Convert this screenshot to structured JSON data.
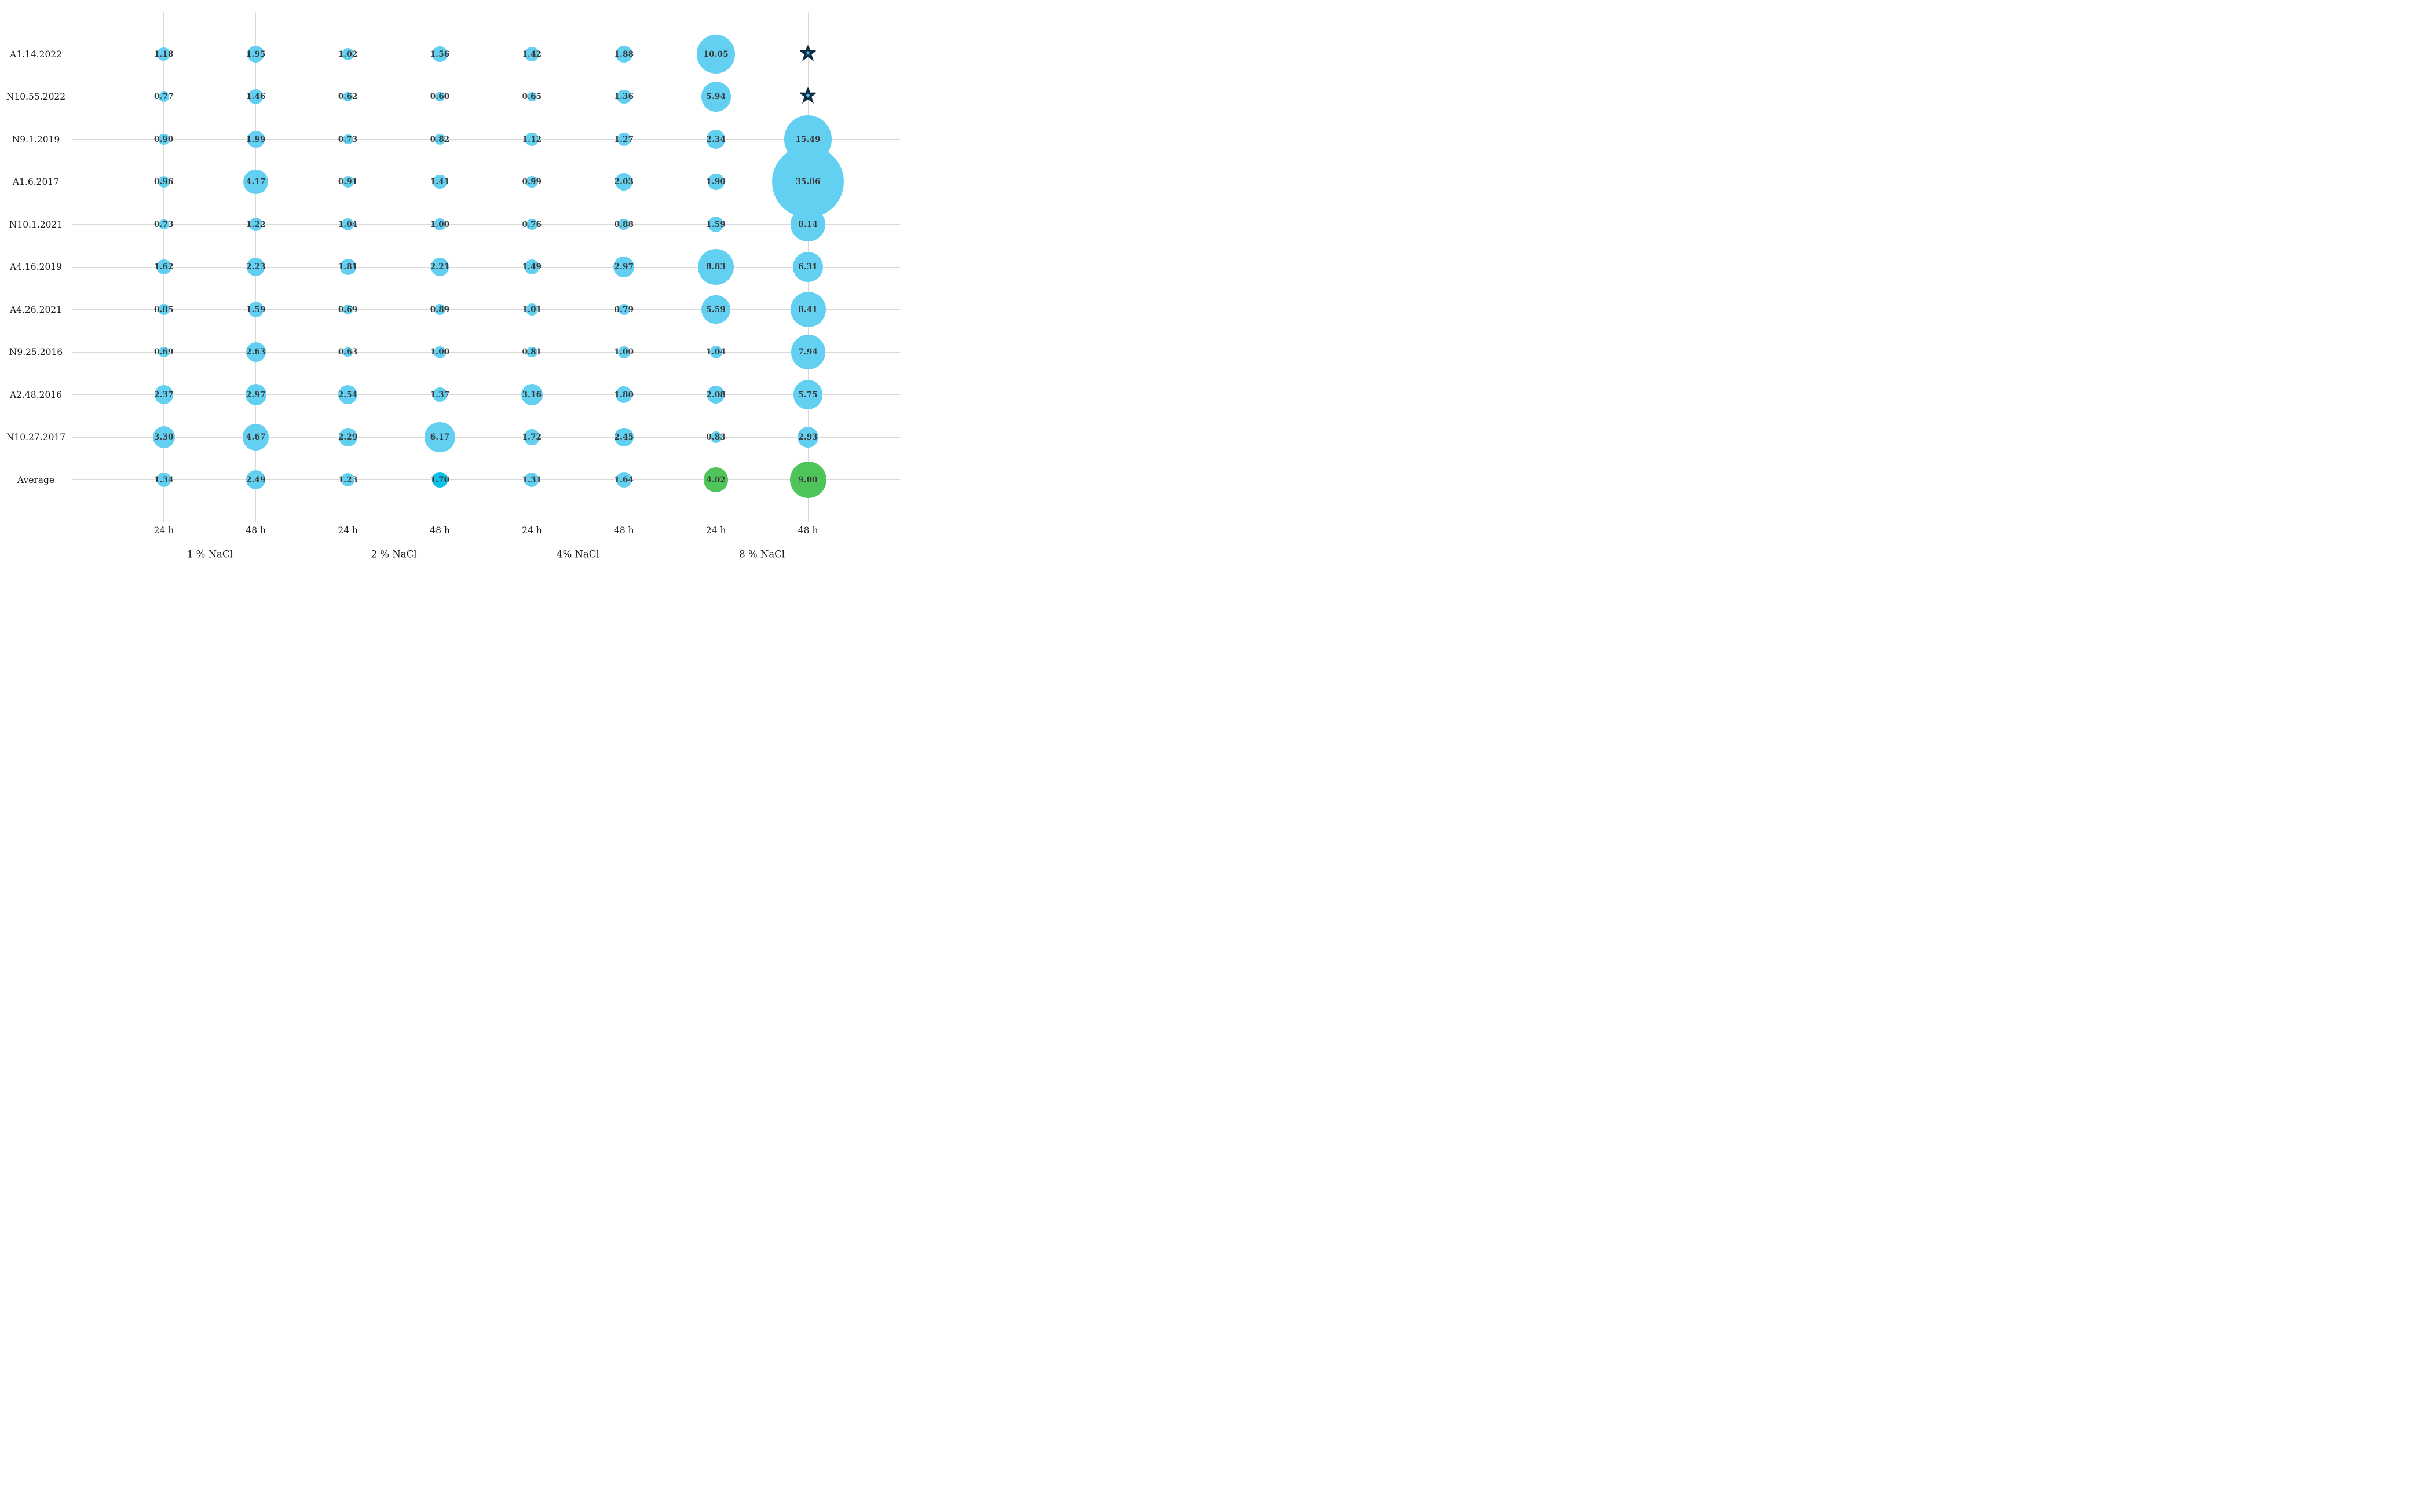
{
  "colors": {
    "bubble": "#63d0f2",
    "bubble_accent_cyan": "#0bc0e9",
    "bubble_green": "#4ec45b",
    "grid": "#d9d9d9",
    "plot_border": "#c8c8c8",
    "value_text": "#3a3a3a",
    "label_text": "#1a1a1a",
    "star_fill": "#59cdf0",
    "star_outline": "#0e2c44",
    "background": "#ffffff"
  },
  "chart_data": {
    "type": "scatter",
    "variant": "bubble",
    "title": "",
    "xlabel": "",
    "ylabel": "",
    "grid": true,
    "legend": false,
    "value_label_format": "two-decimals",
    "bubble_size_rule": "diameter proportional to sqrt(value)",
    "star_marker_meaning": "star symbol shown instead of bubble (no numeric value displayed)",
    "col_time_labels": [
      "24 h",
      "48 h",
      "24 h",
      "48 h",
      "24 h",
      "48 h",
      "24 h",
      "48 h"
    ],
    "group_labels": [
      "1 % NaCl",
      "2 % NaCl",
      "4% NaCl",
      "8 % NaCl"
    ],
    "rows": [
      {
        "label": "A1.14.2022",
        "values": [
          "1.18",
          "1.95",
          "1.02",
          "1.56",
          "1.42",
          "1.88",
          "10.05",
          "star"
        ]
      },
      {
        "label": "N10.55.2022",
        "values": [
          "0.77",
          "1.46",
          "0.62",
          "0.60",
          "0.65",
          "1.36",
          "5.94",
          "star"
        ]
      },
      {
        "label": "N9.1.2019",
        "values": [
          "0.90",
          "1.99",
          "0.73",
          "0.82",
          "1.12",
          "1.27",
          "2.34",
          "15.49"
        ]
      },
      {
        "label": "A1.6.2017",
        "values": [
          "0.96",
          "4.17",
          "0.91",
          "1.41",
          "0.99",
          "2.03",
          "1.90",
          "35.06"
        ]
      },
      {
        "label": "N10.1.2021",
        "values": [
          "0.73",
          "1.22",
          "1.04",
          "1.00",
          "0.76",
          "0.88",
          "1.59",
          "8.14"
        ]
      },
      {
        "label": "A4.16.2019",
        "values": [
          "1.62",
          "2.23",
          "1.81",
          "2.21",
          "1.49",
          "2.97",
          "8.83",
          "6.31"
        ]
      },
      {
        "label": "A4.26.2021",
        "values": [
          "0.85",
          "1.59",
          "0.69",
          "0.89",
          "1.01",
          "0.79",
          "5.59",
          "8.41"
        ]
      },
      {
        "label": "N9.25.2016",
        "values": [
          "0.69",
          "2.63",
          "0.63",
          "1.00",
          "0.81",
          "1.00",
          "1.04",
          "7.94"
        ]
      },
      {
        "label": "A2.48.2016",
        "values": [
          "2.37",
          "2.97",
          "2.54",
          "1.37",
          "3.16",
          "1.80",
          "2.08",
          "5.75"
        ]
      },
      {
        "label": "N10.27.2017",
        "values": [
          "3.30",
          "4.67",
          "2.29",
          "6.17",
          "1.72",
          "2.45",
          "0.83",
          "2.93"
        ]
      },
      {
        "label": "Average",
        "values": [
          "1.34",
          "2.49",
          "1.23",
          "1.70",
          "1.31",
          "1.64",
          "4.02",
          "9.00"
        ],
        "cell_colors": {
          "3": "bubble_accent_cyan",
          "6": "bubble_green",
          "7": "bubble_green"
        }
      }
    ]
  }
}
